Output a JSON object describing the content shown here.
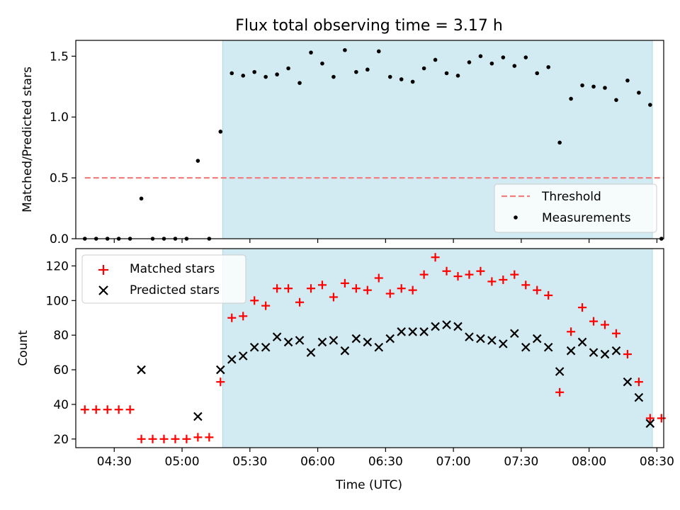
{
  "title": "Flux total observing time = 3.17 h",
  "colors": {
    "shade": "#add8e6",
    "threshold": "#f08080",
    "matched": "#ff0000",
    "predicted": "#000000",
    "measurement": "#000000"
  },
  "chart_data": [
    {
      "type": "scatter",
      "ylabel": "Matched/Predicted stars",
      "xlabel": "",
      "ylim": [
        0,
        1.63
      ],
      "yticks": [
        0.0,
        0.5,
        1.0,
        1.5
      ],
      "ytick_labels": [
        "0.0",
        "0.5",
        "1.0",
        "1.5"
      ],
      "shaded_region": {
        "x": [
          "05:18",
          "08:28"
        ]
      },
      "threshold": {
        "name": "Threshold",
        "value": 0.5,
        "x": [
          "04:17",
          "08:33"
        ]
      },
      "measurements": {
        "name": "Measurements",
        "x": [
          "04:17",
          "04:22",
          "04:27",
          "04:32",
          "04:37",
          "04:42",
          "04:47",
          "04:52",
          "04:57",
          "05:02",
          "05:07",
          "05:12",
          "05:17",
          "05:22",
          "05:27",
          "05:32",
          "05:37",
          "05:42",
          "05:47",
          "05:52",
          "05:57",
          "06:02",
          "06:07",
          "06:12",
          "06:17",
          "06:22",
          "06:27",
          "06:32",
          "06:37",
          "06:42",
          "06:47",
          "06:52",
          "06:57",
          "07:02",
          "07:07",
          "07:12",
          "07:17",
          "07:22",
          "07:27",
          "07:32",
          "07:37",
          "07:42",
          "07:47",
          "07:52",
          "07:57",
          "08:02",
          "08:07",
          "08:12",
          "08:17",
          "08:22",
          "08:27",
          "08:32"
        ],
        "y": [
          0.0,
          0.0,
          0.0,
          0.0,
          0.0,
          0.33,
          0.0,
          0.0,
          0.0,
          0.0,
          0.64,
          0.0,
          0.88,
          1.36,
          1.34,
          1.37,
          1.33,
          1.35,
          1.4,
          1.28,
          1.53,
          1.44,
          1.33,
          1.55,
          1.37,
          1.39,
          1.54,
          1.33,
          1.31,
          1.29,
          1.4,
          1.47,
          1.36,
          1.34,
          1.45,
          1.5,
          1.44,
          1.49,
          1.42,
          1.49,
          1.36,
          1.41,
          0.79,
          1.15,
          1.26,
          1.25,
          1.24,
          1.14,
          1.3,
          1.2,
          1.1,
          0.0
        ]
      }
    },
    {
      "type": "scatter",
      "ylabel": "Count",
      "xlabel": "Time (UTC)",
      "ylim": [
        15,
        130
      ],
      "yticks": [
        20,
        40,
        60,
        80,
        100,
        120
      ],
      "ytick_labels": [
        "20",
        "40",
        "60",
        "80",
        "100",
        "120"
      ],
      "xlim": [
        "04:13",
        "08:33"
      ],
      "xticks": [
        "04:30",
        "05:00",
        "05:30",
        "06:00",
        "06:30",
        "07:00",
        "07:30",
        "08:00",
        "08:30"
      ],
      "xtick_labels": [
        "04:30",
        "05:00",
        "05:30",
        "06:00",
        "06:30",
        "07:00",
        "07:30",
        "08:00",
        "08:30"
      ],
      "shaded_region": {
        "x": [
          "05:18",
          "08:28"
        ]
      },
      "series": [
        {
          "name": "Matched stars",
          "marker": "plus",
          "x": [
            "04:17",
            "04:22",
            "04:27",
            "04:32",
            "04:37",
            "04:42",
            "04:47",
            "04:52",
            "04:57",
            "05:02",
            "05:07",
            "05:12",
            "05:17",
            "05:22",
            "05:27",
            "05:32",
            "05:37",
            "05:42",
            "05:47",
            "05:52",
            "05:57",
            "06:02",
            "06:07",
            "06:12",
            "06:17",
            "06:22",
            "06:27",
            "06:32",
            "06:37",
            "06:42",
            "06:47",
            "06:52",
            "06:57",
            "07:02",
            "07:07",
            "07:12",
            "07:17",
            "07:22",
            "07:27",
            "07:32",
            "07:37",
            "07:42",
            "07:47",
            "07:52",
            "07:57",
            "08:02",
            "08:07",
            "08:12",
            "08:17",
            "08:22",
            "08:27",
            "08:32"
          ],
          "y": [
            37,
            37,
            37,
            37,
            37,
            20,
            20,
            20,
            20,
            20,
            21,
            21,
            53,
            90,
            91,
            100,
            97,
            107,
            107,
            99,
            107,
            109,
            102,
            110,
            107,
            106,
            113,
            104,
            107,
            106,
            115,
            125,
            117,
            114,
            115,
            117,
            111,
            112,
            115,
            109,
            106,
            103,
            47,
            82,
            96,
            88,
            86,
            81,
            69,
            53,
            32,
            32
          ]
        },
        {
          "name": "Predicted stars",
          "marker": "x",
          "x": [
            "04:42",
            "05:07",
            "05:17",
            "05:22",
            "05:27",
            "05:32",
            "05:37",
            "05:42",
            "05:47",
            "05:52",
            "05:57",
            "06:02",
            "06:07",
            "06:12",
            "06:17",
            "06:22",
            "06:27",
            "06:32",
            "06:37",
            "06:42",
            "06:47",
            "06:52",
            "06:57",
            "07:02",
            "07:07",
            "07:12",
            "07:17",
            "07:22",
            "07:27",
            "07:32",
            "07:37",
            "07:42",
            "07:47",
            "07:52",
            "07:57",
            "08:02",
            "08:07",
            "08:12",
            "08:17",
            "08:22",
            "08:27"
          ],
          "y": [
            60,
            33,
            60,
            66,
            68,
            73,
            73,
            79,
            76,
            77,
            70,
            76,
            77,
            71,
            78,
            76,
            73,
            78,
            82,
            82,
            82,
            85,
            86,
            85,
            79,
            78,
            77,
            75,
            81,
            73,
            78,
            73,
            59,
            71,
            76,
            70,
            69,
            71,
            53,
            44,
            29
          ]
        }
      ]
    }
  ]
}
